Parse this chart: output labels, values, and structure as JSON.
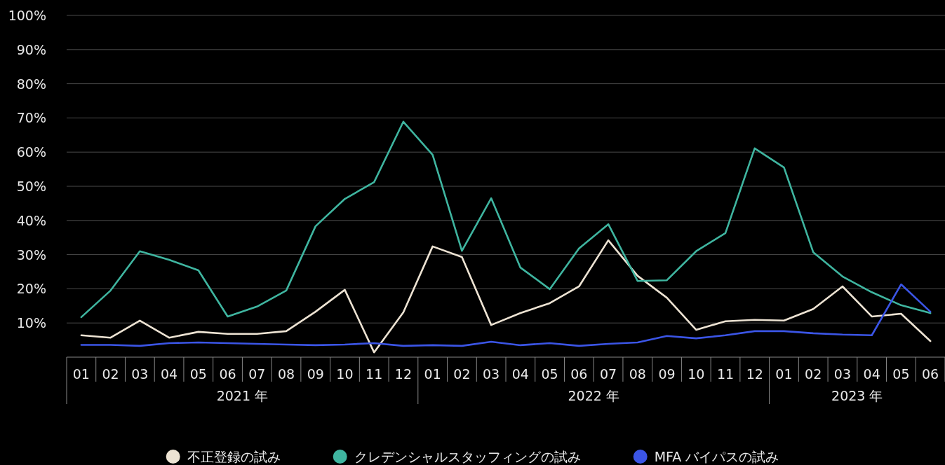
{
  "chart_data": {
    "type": "line",
    "categories": [
      "01",
      "02",
      "03",
      "04",
      "05",
      "06",
      "07",
      "08",
      "09",
      "10",
      "11",
      "12",
      "01",
      "02",
      "03",
      "04",
      "05",
      "06",
      "07",
      "08",
      "09",
      "10",
      "11",
      "12",
      "01",
      "02",
      "03",
      "04",
      "05",
      "06"
    ],
    "annotations": [
      "2021 年",
      "2022 年",
      "2023 年"
    ],
    "ylim": [
      0,
      100
    ],
    "yticks": [
      {
        "value": 10,
        "label": "10%"
      },
      {
        "value": 20,
        "label": "20%"
      },
      {
        "value": 30,
        "label": "30%"
      },
      {
        "value": 40,
        "label": "40%"
      },
      {
        "value": 50,
        "label": "50%"
      },
      {
        "value": 60,
        "label": "60%"
      },
      {
        "value": 70,
        "label": "70%"
      },
      {
        "value": 80,
        "label": "80%"
      },
      {
        "value": 90,
        "label": "90%"
      },
      {
        "value": 100,
        "label": "100%"
      }
    ],
    "grid": "y",
    "legend": "bottom",
    "marker": "none",
    "line_style": "solid",
    "series": [
      {
        "name": "不正登録の試み",
        "color": "#ede3d3",
        "values": [
          6.4,
          5.7,
          10.7,
          5.7,
          7.4,
          6.8,
          6.8,
          7.6,
          13.3,
          19.7,
          1.4,
          13.1,
          32.4,
          29.3,
          9.4,
          12.9,
          15.8,
          20.7,
          34.2,
          23.8,
          17.4,
          8,
          10.5,
          10.9,
          10.7,
          14.1,
          20.7,
          11.9,
          12.7,
          4.7
        ]
      },
      {
        "name": "クレデンシャルスタッフィングの試み",
        "color": "#3fb5a0",
        "values": [
          11.7,
          19.5,
          31,
          28.5,
          25.4,
          11.9,
          14.8,
          19.5,
          38.3,
          46.3,
          51.2,
          68.9,
          59.2,
          31.1,
          46.5,
          26.2,
          19.9,
          31.8,
          38.9,
          22.3,
          22.5,
          31,
          36.3,
          61.1,
          55.5,
          30.7,
          23.6,
          19,
          15.2,
          12.9
        ]
      },
      {
        "name": "MFA バイパスの試み",
        "color": "#3b55e6",
        "values": [
          3.6,
          3.6,
          3.3,
          4.1,
          4.3,
          4.1,
          3.9,
          3.7,
          3.5,
          3.7,
          4.1,
          3.3,
          3.5,
          3.3,
          4.5,
          3.5,
          4.1,
          3.3,
          3.9,
          4.3,
          6.2,
          5.5,
          6.4,
          7.6,
          7.6,
          7,
          6.6,
          6.4,
          21.3,
          13.3
        ]
      }
    ]
  }
}
